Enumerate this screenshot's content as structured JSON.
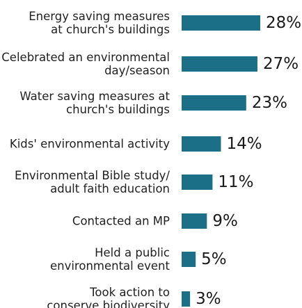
{
  "chart_data": {
    "type": "bar",
    "orientation": "horizontal",
    "categories": [
      [
        "Energy saving measures",
        "at church's buildings"
      ],
      [
        "Celebrated an environmental",
        "day/season"
      ],
      [
        "Water saving measures at",
        "church's buildings"
      ],
      [
        "Kids' environmental activity"
      ],
      [
        "Environmental Bible study/",
        "adult faith education"
      ],
      [
        "Contacted an MP"
      ],
      [
        "Held a public",
        "environmental event"
      ],
      [
        "Took action to",
        "conserve biodiversity"
      ]
    ],
    "values": [
      28,
      27,
      23,
      14,
      11,
      9,
      5,
      3
    ],
    "value_labels": [
      "28%",
      "27%",
      "23%",
      "14%",
      "11%",
      "9%",
      "5%",
      "3%"
    ],
    "unit": "%",
    "xlim": [
      0,
      28
    ],
    "grid": false,
    "legend": "none",
    "colors": {
      "bar": "#1b6f86",
      "text": "#1f1f1f"
    }
  }
}
